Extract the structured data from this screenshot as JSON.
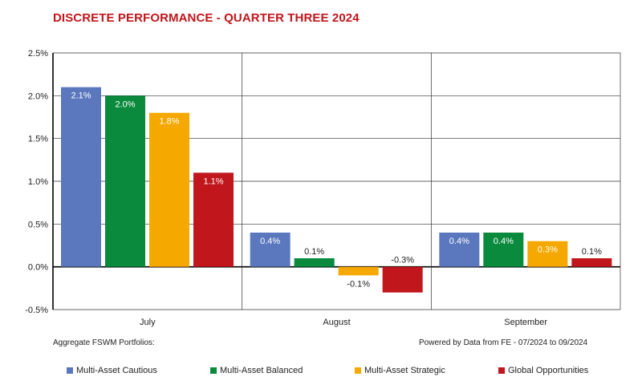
{
  "header": {
    "title": "DISCRETE PERFORMANCE - QUARTER THREE 2024"
  },
  "notes": {
    "left": "Aggregate FSWM Portfolios:",
    "right": "Powered by Data from FE - 07/2024 to 09/2024"
  },
  "chart_data": {
    "type": "bar",
    "title": "DISCRETE PERFORMANCE - QUARTER THREE 2024",
    "categories": [
      "July",
      "August",
      "September"
    ],
    "series": [
      {
        "name": "Multi-Asset Cautious",
        "color": "#5b78be",
        "values": [
          2.1,
          0.4,
          0.4
        ],
        "labels": [
          "2.1%",
          "0.4%",
          "0.4%"
        ]
      },
      {
        "name": "Multi-Asset Balanced",
        "color": "#0a8a3c",
        "values": [
          2.0,
          0.1,
          0.4
        ],
        "labels": [
          "2.0%",
          "0.1%",
          "0.4%"
        ]
      },
      {
        "name": "Multi-Asset Strategic",
        "color": "#f5a800",
        "values": [
          1.8,
          -0.1,
          0.3
        ],
        "labels": [
          "1.8%",
          "-0.1%",
          "0.3%"
        ]
      },
      {
        "name": "Global Opportunities",
        "color": "#c0161c",
        "values": [
          1.1,
          -0.3,
          0.1
        ],
        "labels": [
          "1.1%",
          "-0.3%",
          "0.1%"
        ]
      }
    ],
    "ylim": [
      -0.5,
      2.5
    ],
    "yticks": [
      2.5,
      2.0,
      1.5,
      1.0,
      0.5,
      0.0,
      -0.5
    ],
    "ytick_labels": [
      "2.5%",
      "2.0%",
      "1.5%",
      "1.0%",
      "0.5%",
      "0.0%",
      "-0.5%"
    ],
    "grid": true,
    "legend_position": "bottom"
  }
}
